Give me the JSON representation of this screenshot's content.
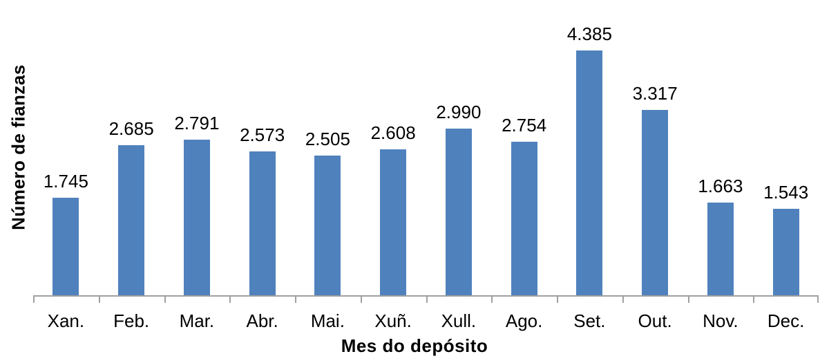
{
  "chart_data": {
    "type": "bar",
    "title": "",
    "xlabel": "Mes do depósito",
    "ylabel": "Número de fianzas",
    "categories": [
      "Xan.",
      "Feb.",
      "Mar.",
      "Abr.",
      "Mai.",
      "Xuñ.",
      "Xull.",
      "Ago.",
      "Set.",
      "Out.",
      "Nov.",
      "Dec."
    ],
    "values": [
      1745,
      2685,
      2791,
      2573,
      2505,
      2608,
      2990,
      2754,
      4385,
      3317,
      1663,
      1543
    ],
    "value_labels": [
      "1.745",
      "2.685",
      "2.791",
      "2.573",
      "2.505",
      "2.608",
      "2.990",
      "2.754",
      "4.385",
      "3.317",
      "1.663",
      "1.543"
    ],
    "ylim": [
      0,
      4870
    ],
    "grid": "off",
    "legend": "none",
    "bar_color": "#4f81bd",
    "axis_color": "#a0a0a0",
    "text_color": "#000000"
  }
}
